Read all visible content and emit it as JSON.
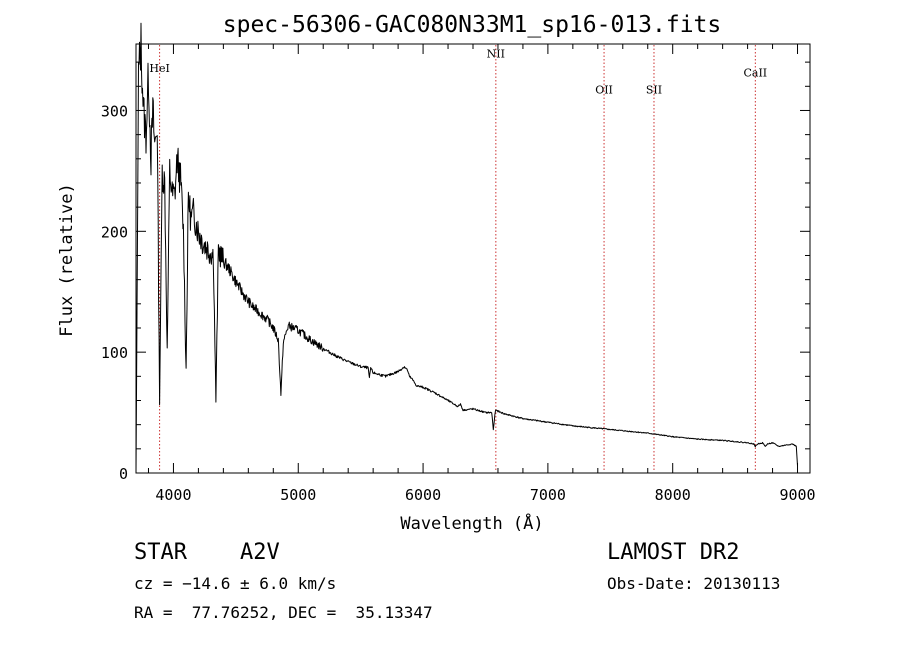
{
  "chart_data": {
    "type": "line",
    "title": "spec-56306-GAC080N33M1_sp16-013.fits",
    "xlabel": "Wavelength (Å)",
    "ylabel": "Flux (relative)",
    "xlim": [
      3700,
      9100
    ],
    "ylim": [
      0,
      355
    ],
    "xticks": [
      4000,
      5000,
      6000,
      7000,
      8000,
      9000
    ],
    "yticks": [
      0,
      100,
      200,
      300
    ],
    "grid": false,
    "series": [
      {
        "color": "#000000",
        "x": [
          3700,
          3720,
          3740,
          3760,
          3780,
          3800,
          3820,
          3835,
          3850,
          3870,
          3889,
          3910,
          3930,
          3950,
          3970,
          3990,
          4010,
          4030,
          4060,
          4080,
          4101,
          4120,
          4140,
          4160,
          4200,
          4240,
          4280,
          4320,
          4340,
          4360,
          4400,
          4440,
          4480,
          4520,
          4560,
          4600,
          4640,
          4700,
          4760,
          4800,
          4840,
          4861,
          4880,
          4920,
          5000,
          5100,
          5200,
          5300,
          5400,
          5500,
          5560,
          5570,
          5580,
          5600,
          5700,
          5800,
          5850,
          5875,
          5890,
          5910,
          5950,
          6000,
          6100,
          6200,
          6280,
          6300,
          6320,
          6400,
          6500,
          6550,
          6563,
          6580,
          6650,
          6800,
          7000,
          7200,
          7400,
          7600,
          7800,
          8000,
          8200,
          8400,
          8500,
          8600,
          8650,
          8662,
          8680,
          8720,
          8740,
          8760,
          8800,
          8850,
          8900,
          8960,
          8990,
          9000
        ],
        "y": [
          0,
          330,
          355,
          300,
          280,
          330,
          260,
          300,
          270,
          290,
          60,
          250,
          240,
          100,
          250,
          230,
          230,
          260,
          240,
          200,
          85,
          230,
          210,
          215,
          200,
          190,
          185,
          180,
          60,
          185,
          175,
          170,
          162,
          155,
          148,
          142,
          137,
          132,
          126,
          120,
          110,
          65,
          108,
          122,
          118,
          110,
          103,
          97,
          92,
          88,
          87,
          78,
          87,
          83,
          80,
          84,
          88,
          85,
          80,
          78,
          72,
          71,
          66,
          60,
          55,
          57,
          52,
          53,
          50,
          50,
          36,
          52,
          49,
          45,
          42,
          39,
          37,
          35,
          33,
          30,
          28,
          27,
          26,
          25,
          24,
          22,
          24,
          25,
          22,
          24,
          25,
          22,
          23,
          24,
          22,
          6
        ],
        "noise": 5
      }
    ],
    "annotations": [
      {
        "label": "HeI",
        "x": 3889,
        "label_y": 332
      },
      {
        "label": "NII",
        "x": 6583,
        "label_y": 344
      },
      {
        "label": "OII",
        "x": 7450,
        "label_y": 314
      },
      {
        "label": "SII",
        "x": 7850,
        "label_y": 314
      },
      {
        "label": "CaII",
        "x": 8662,
        "label_y": 328
      }
    ],
    "line_color": "#cc3333"
  },
  "info": {
    "object_class": "STAR",
    "subclass": "A2V",
    "cz": "cz = −14.6 ± 6.0 km/s",
    "radec": "RA =  77.76252, DEC =  35.13347",
    "survey": "LAMOST DR2",
    "obs_date": "Obs-Date: 20130113"
  }
}
